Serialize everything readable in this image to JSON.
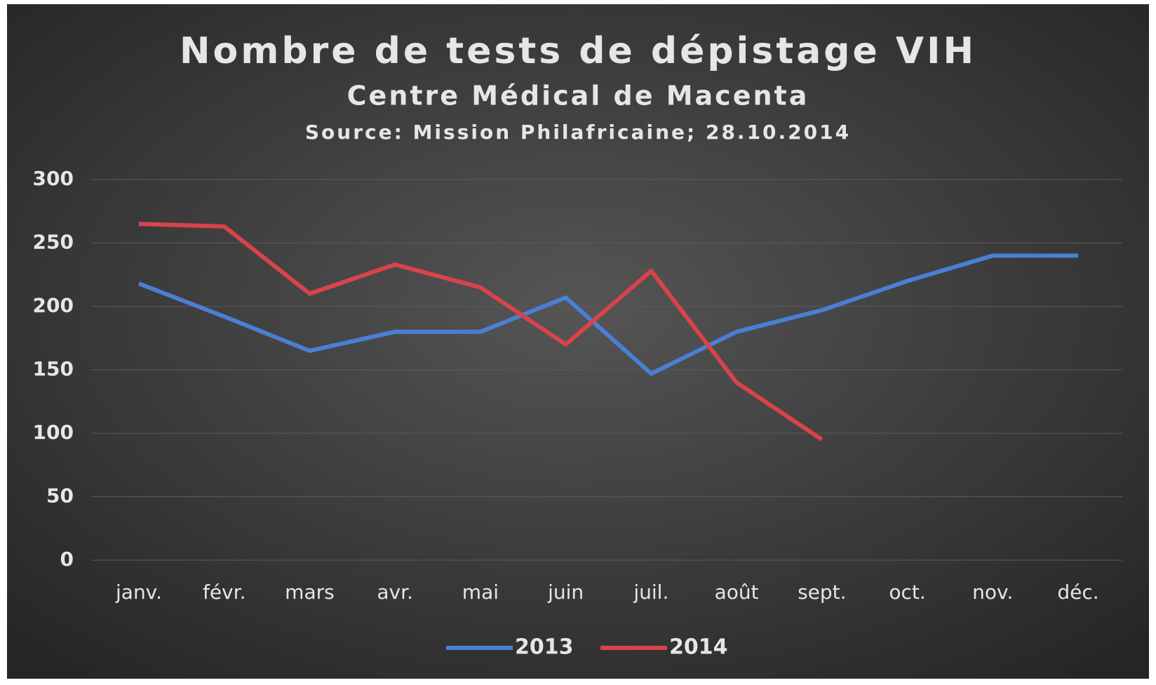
{
  "chart_data": {
    "type": "line",
    "title": "Nombre de tests de dépistage VIH",
    "subtitle": "Centre Médical de Macenta",
    "source": "Source: Mission Philafricaine; 28.10.2014",
    "categories": [
      "janv.",
      "févr.",
      "mars",
      "avr.",
      "mai",
      "juin",
      "juil.",
      "août",
      "sept.",
      "oct.",
      "nov.",
      "déc."
    ],
    "series": [
      {
        "name": "2013",
        "color": "#4a7fd4",
        "values": [
          218,
          192,
          165,
          180,
          180,
          207,
          147,
          180,
          197,
          220,
          240,
          240
        ]
      },
      {
        "name": "2014",
        "color": "#d9434a",
        "values": [
          265,
          263,
          210,
          233,
          215,
          170,
          228,
          140,
          95,
          null,
          null,
          null
        ]
      }
    ],
    "ylim": [
      0,
      300
    ],
    "yticks": [
      0,
      50,
      100,
      150,
      200,
      250,
      300
    ],
    "grid": true,
    "legend": "bottom"
  }
}
